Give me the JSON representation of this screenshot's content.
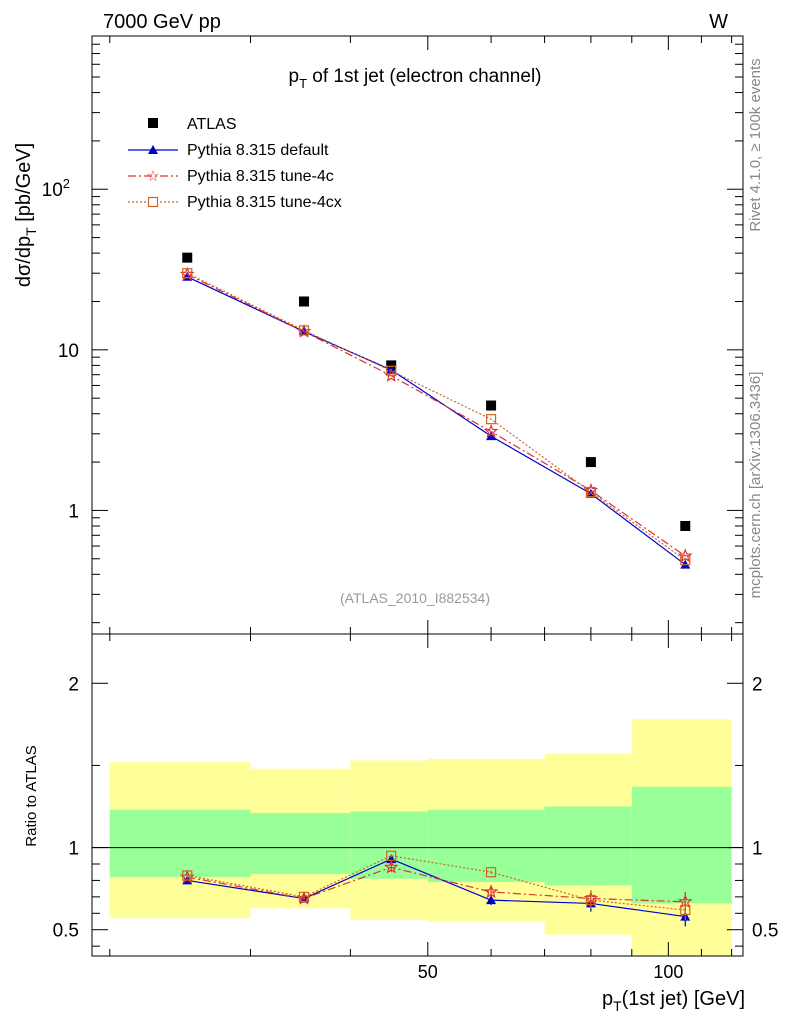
{
  "header": {
    "left": "7000 GeV pp",
    "right": "W"
  },
  "side_labels": {
    "rivet": "Rivet 4.1.0, ≥ 100k events",
    "mcplots": "mcplots.cern.ch [arXiv:1306.3436]"
  },
  "colors": {
    "atlas": "#000000",
    "default": "#0000cc",
    "tune4c": "#dd3333",
    "tune4cx": "#cc6622",
    "band_inner": "#99ff99",
    "band_outer": "#ffff99"
  },
  "chart_data": [
    {
      "type": "line",
      "title_parts": {
        "p": "p",
        "sub": "T",
        "rest": " of 1st jet (electron channel)"
      },
      "ylabel_parts": {
        "pre": "dσ/dp",
        "sub": "T",
        "post": " [pb/GeV]"
      },
      "yscale": "log",
      "ylim": [
        0.17,
        900
      ],
      "xlim": [
        19,
        124
      ],
      "yticks": [
        {
          "v": 1,
          "label": "1"
        },
        {
          "v": 10,
          "label": "10"
        },
        {
          "v": 100,
          "label": "10",
          "sup": "2"
        }
      ],
      "watermark": "(ATLAS_2010_I882534)",
      "legend": {
        "atlas": "ATLAS",
        "default": "Pythia 8.315 default",
        "tune4c": "Pythia 8.315 tune-4c",
        "tune4cx": "Pythia 8.315 tune-4cx"
      },
      "x": [
        25,
        35,
        45,
        60,
        80,
        105
      ],
      "series": [
        {
          "name": "ATLAS",
          "key": "atlas",
          "values": [
            37.5,
            20.0,
            8.0,
            4.5,
            2.0,
            0.8
          ]
        },
        {
          "name": "Pythia 8.315 default",
          "key": "default",
          "values": [
            28.5,
            13.0,
            7.5,
            2.9,
            1.27,
            0.46
          ]
        },
        {
          "name": "Pythia 8.315 tune-4c",
          "key": "tune4c",
          "values": [
            29.5,
            13.0,
            6.9,
            3.1,
            1.33,
            0.52
          ]
        },
        {
          "name": "Pythia 8.315 tune-4cx",
          "key": "tune4cx",
          "values": [
            30.0,
            13.2,
            7.4,
            3.7,
            1.3,
            0.49
          ]
        }
      ]
    },
    {
      "type": "line",
      "ylabel": "Ratio to ATLAS",
      "xlabel_parts": {
        "p": "p",
        "sub": "T",
        "rest": "(1st jet) [GeV]"
      },
      "ylim": [
        0.34,
        2.3
      ],
      "xlim": [
        19,
        124
      ],
      "yticks": [
        {
          "v": 0.5,
          "label": "0.5"
        },
        {
          "v": 1,
          "label": "1"
        },
        {
          "v": 2,
          "label": "2"
        }
      ],
      "xticks": [
        {
          "v": 50,
          "label": "50"
        },
        {
          "v": 100,
          "label": "100"
        }
      ],
      "bins": [
        {
          "lo": 20,
          "hi": 30,
          "in_lo": 0.82,
          "in_hi": 1.23,
          "out_lo": 0.57,
          "out_hi": 1.52
        },
        {
          "lo": 30,
          "hi": 40,
          "in_lo": 0.84,
          "in_hi": 1.21,
          "out_lo": 0.63,
          "out_hi": 1.48
        },
        {
          "lo": 40,
          "hi": 50,
          "in_lo": 0.81,
          "in_hi": 1.22,
          "out_lo": 0.56,
          "out_hi": 1.53
        },
        {
          "lo": 50,
          "hi": 70,
          "in_lo": 0.79,
          "in_hi": 1.23,
          "out_lo": 0.55,
          "out_hi": 1.54
        },
        {
          "lo": 70,
          "hi": 90,
          "in_lo": 0.77,
          "in_hi": 1.25,
          "out_lo": 0.47,
          "out_hi": 1.57
        },
        {
          "lo": 90,
          "hi": 120,
          "in_lo": 0.66,
          "in_hi": 1.37,
          "out_lo": 0.32,
          "out_hi": 1.78
        }
      ],
      "x": [
        25,
        35,
        45,
        60,
        80,
        105
      ],
      "series": [
        {
          "name": "Pythia 8.315 default",
          "key": "default",
          "values": [
            0.8,
            0.69,
            0.93,
            0.68,
            0.66,
            0.58
          ],
          "err": [
            0.01,
            0.01,
            0.01,
            0.03,
            0.05,
            0.06
          ]
        },
        {
          "name": "Pythia 8.315 tune-4c",
          "key": "tune4c",
          "values": [
            0.82,
            0.69,
            0.88,
            0.73,
            0.69,
            0.67
          ],
          "err": [
            0.01,
            0.01,
            0.03,
            0.03,
            0.05,
            0.06
          ]
        },
        {
          "name": "Pythia 8.315 tune-4cx",
          "key": "tune4cx",
          "values": [
            0.83,
            0.7,
            0.95,
            0.85,
            0.68,
            0.62
          ],
          "err": [
            0.01,
            0.01,
            0.01,
            0.01,
            0.05,
            0.06
          ]
        }
      ]
    }
  ]
}
